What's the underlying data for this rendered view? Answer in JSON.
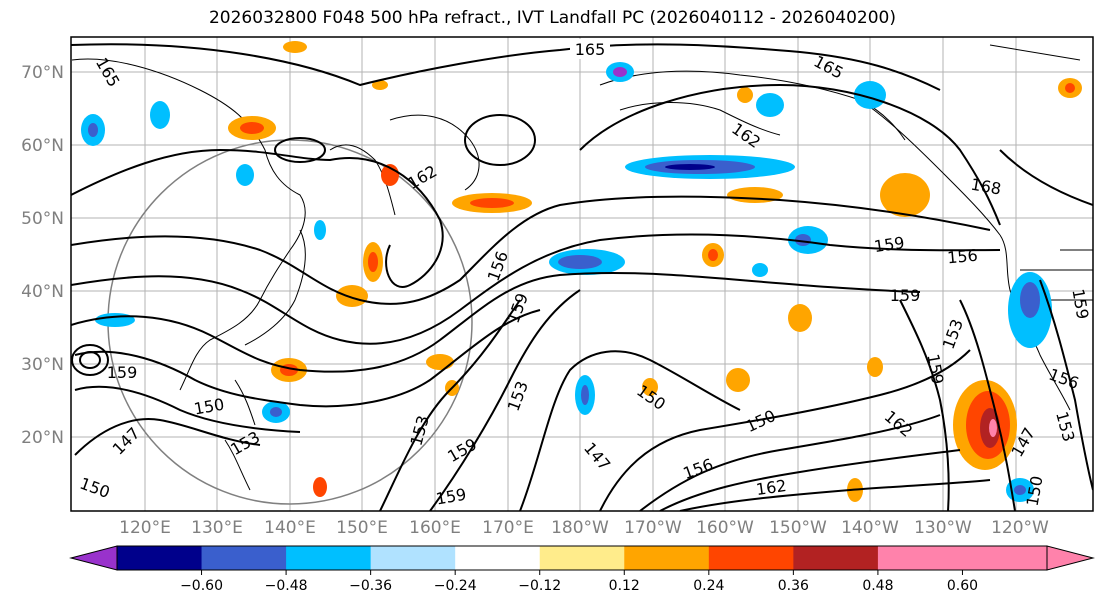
{
  "title": "2026032800 F048 500 hPa refract., IVT Landfall PC (2026040112 - 2026040200)",
  "lat_labels": [
    "70°N",
    "60°N",
    "50°N",
    "40°N",
    "30°N",
    "20°N"
  ],
  "lon_labels": [
    "120°E",
    "130°E",
    "140°E",
    "150°E",
    "160°E",
    "170°E",
    "180°W",
    "170°W",
    "160°W",
    "150°W",
    "140°W",
    "130°W",
    "120°W"
  ],
  "contour_labels": [
    "165",
    "165",
    "165",
    "162",
    "162",
    "168",
    "159",
    "156",
    "156",
    "159",
    "159",
    "153",
    "159",
    "159",
    "150",
    "147",
    "150",
    "153",
    "153",
    "159",
    "159",
    "150",
    "150",
    "147",
    "156",
    "162",
    "162",
    "153",
    "156",
    "147",
    "150",
    "153",
    "159"
  ],
  "colorbar": {
    "ticks": [
      "−0.60",
      "−0.48",
      "−0.36",
      "−0.24",
      "−0.12",
      "0.12",
      "0.24",
      "0.36",
      "0.48",
      "0.60"
    ],
    "colors": [
      "#9932cc",
      "#00008b",
      "#3a5fcd",
      "#00bfff",
      "#b0e2ff",
      "#ffffff",
      "#ffec8b",
      "#ffa500",
      "#ff4500",
      "#b22222",
      "#ff82ab"
    ]
  }
}
